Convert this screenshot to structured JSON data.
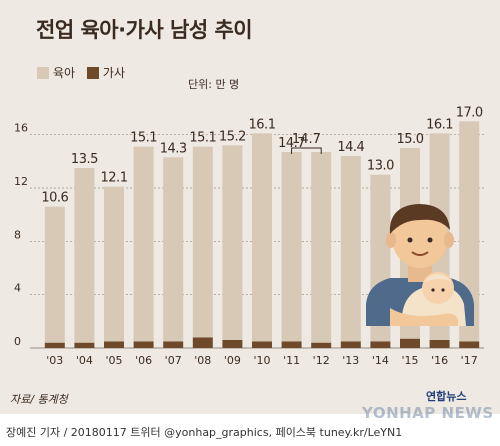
{
  "title": "전업 육아·가사 남성 추이",
  "legend": [
    {
      "label": "육아",
      "color": "#d8c8b6"
    },
    {
      "label": "가사",
      "color": "#6f4a2a"
    }
  ],
  "unit": "단위: 만 명",
  "source": "자료/ 통계청",
  "credit": "장예진 기자 / 20180117 트위터 @yonhap_graphics, 페이스북 tuney.kr/LeYN1",
  "agency": "연합뉴스",
  "watermark": "YONHAP NEWS",
  "chart_data": {
    "type": "bar",
    "stacked": true,
    "categories": [
      "'03",
      "'04",
      "'05",
      "'06",
      "'07",
      "'08",
      "'09",
      "'10",
      "'11",
      "'12",
      "'13",
      "'14",
      "'15",
      "'16",
      "'17"
    ],
    "totals": [
      "10.6",
      "13.5",
      "12.1",
      "15.1",
      "14.3",
      "15.1",
      "15.2",
      "16.1",
      "14.7",
      "14.7",
      "14.4",
      "13.0",
      "15.0",
      "16.1",
      "17.0"
    ],
    "series": [
      {
        "name": "육아",
        "values": [
          10.2,
          13.1,
          11.6,
          14.6,
          13.8,
          14.3,
          14.6,
          15.6,
          14.2,
          14.3,
          13.9,
          12.5,
          14.3,
          15.5,
          16.5
        ]
      },
      {
        "name": "가사",
        "values": [
          0.4,
          0.4,
          0.5,
          0.5,
          0.5,
          0.8,
          0.6,
          0.5,
          0.5,
          0.4,
          0.5,
          0.5,
          0.7,
          0.6,
          0.5
        ]
      }
    ],
    "y_ticks": [
      "0",
      "4",
      "8",
      "12",
      "16"
    ],
    "ylim": [
      0,
      18
    ],
    "grid": true,
    "bracket": {
      "from": "'11",
      "to": "'12",
      "label": "14.7"
    },
    "colors": {
      "육아": "#d8c8b6",
      "가사": "#6f4a2a",
      "grid": "#9a8e84"
    }
  }
}
